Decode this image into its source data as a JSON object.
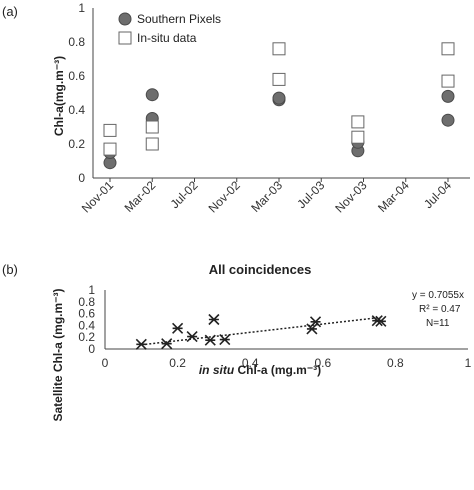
{
  "colors": {
    "circle_fill": "#6e6e6e",
    "circle_stroke": "#4a4a4a",
    "square_fill": "#ffffff",
    "square_stroke": "#666666",
    "axis": "#444444",
    "star": "#222222",
    "trendline": "#222222"
  },
  "chart_data": [
    {
      "panel": "(a)",
      "type": "scatter",
      "xlabel": "",
      "ylabel": "Chl-a(mg.m⁻³)",
      "x_ticks": [
        "Nov-01",
        "Mar-02",
        "Jul-02",
        "Nov-02",
        "Mar-03",
        "Jul-03",
        "Nov-03",
        "Mar-04",
        "Jul-04"
      ],
      "y_ticks": [
        "0",
        "0.2",
        "0.4",
        "0.6",
        "0.8",
        "1"
      ],
      "ylim": [
        0,
        1
      ],
      "grid": false,
      "legend_position": "top-left",
      "series": [
        {
          "name": "Southern Pixels",
          "marker": "circle",
          "points": [
            {
              "x": "2001-11-01",
              "y": 0.09
            },
            {
              "x": "2001-11-01",
              "y": 0.15
            },
            {
              "x": "2002-03-01",
              "y": 0.35
            },
            {
              "x": "2002-03-01",
              "y": 0.49
            },
            {
              "x": "2003-03-01",
              "y": 0.46
            },
            {
              "x": "2003-03-01",
              "y": 0.47
            },
            {
              "x": "2003-10-15",
              "y": 0.16
            },
            {
              "x": "2003-10-15",
              "y": 0.21
            },
            {
              "x": "2004-07-01",
              "y": 0.34
            },
            {
              "x": "2004-07-01",
              "y": 0.48
            }
          ]
        },
        {
          "name": "In-situ data",
          "marker": "square",
          "points": [
            {
              "x": "2001-11-01",
              "y": 0.17
            },
            {
              "x": "2001-11-01",
              "y": 0.28
            },
            {
              "x": "2002-03-01",
              "y": 0.2
            },
            {
              "x": "2002-03-01",
              "y": 0.3
            },
            {
              "x": "2003-03-01",
              "y": 0.58
            },
            {
              "x": "2003-03-01",
              "y": 0.76
            },
            {
              "x": "2003-10-15",
              "y": 0.24
            },
            {
              "x": "2003-10-15",
              "y": 0.33
            },
            {
              "x": "2004-07-01",
              "y": 0.57
            },
            {
              "x": "2004-07-01",
              "y": 0.76
            }
          ]
        }
      ]
    },
    {
      "panel": "(b)",
      "type": "scatter",
      "title": "All coincidences",
      "xlabel_italic": "in situ",
      "xlabel_rest": " Chl-a (mg.m⁻³)",
      "ylabel": "Satellite Chl-a (mg.m⁻³)",
      "xlim": [
        0,
        1
      ],
      "ylim": [
        0,
        1
      ],
      "x_ticks": [
        "0",
        "0.2",
        "0.4",
        "0.6",
        "0.8",
        "1"
      ],
      "y_ticks": [
        "0",
        "0.2",
        "0.4",
        "0.6",
        "0.8",
        "1"
      ],
      "grid": false,
      "annotations": [
        "y = 0.7055x",
        "R² = 0.47",
        "N=11"
      ],
      "trendline": {
        "slope": 0.7055,
        "intercept": 0,
        "x_range": [
          0.1,
          0.76
        ]
      },
      "points": [
        {
          "x": 0.1,
          "y": 0.08
        },
        {
          "x": 0.17,
          "y": 0.09
        },
        {
          "x": 0.2,
          "y": 0.35
        },
        {
          "x": 0.24,
          "y": 0.21
        },
        {
          "x": 0.29,
          "y": 0.15
        },
        {
          "x": 0.3,
          "y": 0.5
        },
        {
          "x": 0.33,
          "y": 0.16
        },
        {
          "x": 0.57,
          "y": 0.34
        },
        {
          "x": 0.58,
          "y": 0.46
        },
        {
          "x": 0.75,
          "y": 0.48
        },
        {
          "x": 0.76,
          "y": 0.47
        }
      ]
    }
  ]
}
